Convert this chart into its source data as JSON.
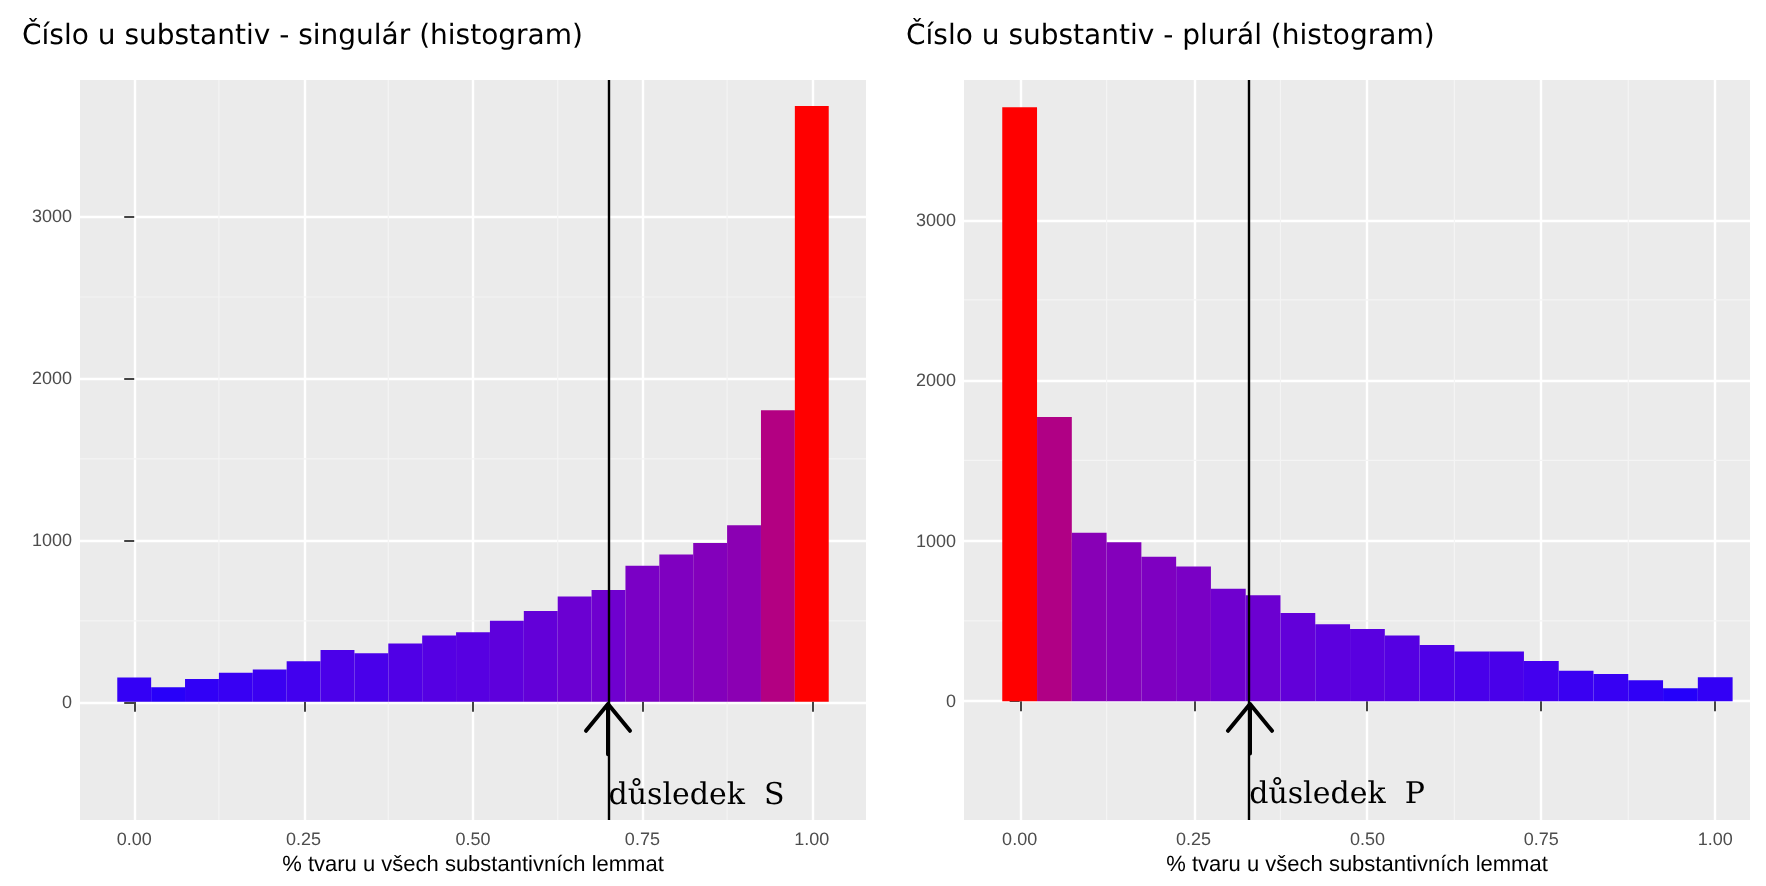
{
  "chart_data": [
    {
      "type": "histogram",
      "title": "Číslo u substantiv - singulár (histogram)",
      "xlabel": "% tvaru u všech substantivních lemmat",
      "bins": [
        -0.025,
        0.025,
        0.075,
        0.125,
        0.175,
        0.225,
        0.275,
        0.325,
        0.375,
        0.425,
        0.475,
        0.525,
        0.575,
        0.625,
        0.675,
        0.725,
        0.775,
        0.825,
        0.875,
        0.925,
        0.975,
        1.025
      ],
      "values": [
        150,
        90,
        140,
        180,
        200,
        250,
        320,
        300,
        360,
        410,
        430,
        500,
        560,
        650,
        690,
        840,
        910,
        980,
        1090,
        1800,
        3680
      ],
      "colors": [
        "#3400f5",
        "#2800f9",
        "#3100f6",
        "#3800f3",
        "#3b00f1",
        "#4200ee",
        "#4b00e9",
        "#4900ea",
        "#5000e6",
        "#5500e3",
        "#5700e1",
        "#5e00dc",
        "#6300d8",
        "#6b00d2",
        "#6f00cf",
        "#7a00c5",
        "#7f00c0",
        "#8300bb",
        "#8b00b3",
        "#b30082",
        "#ff0000"
      ],
      "xlim": [
        -0.08,
        1.08
      ],
      "xticks": [
        {
          "value": 0,
          "label": "0.00"
        },
        {
          "value": 0.25,
          "label": "0.25"
        },
        {
          "value": 0.5,
          "label": "0.50"
        },
        {
          "value": 0.75,
          "label": "0.75"
        },
        {
          "value": 1,
          "label": "1.00"
        }
      ],
      "ylim": [
        -730,
        3840
      ],
      "yticks": [
        0,
        1000,
        2000,
        3000
      ],
      "grid": true,
      "ref_lines": [
        {
          "axis": "x",
          "value": 0.7,
          "color": "#000000"
        }
      ],
      "annotations": [
        {
          "text": "důsledek  S",
          "x": 0.7,
          "y": -570
        }
      ]
    },
    {
      "type": "histogram",
      "title": "Číslo u substantiv - plurál (histogram)",
      "xlabel": "% tvaru u všech substantivních lemmat",
      "bins": [
        -0.025,
        0.025,
        0.075,
        0.125,
        0.175,
        0.225,
        0.275,
        0.325,
        0.375,
        0.425,
        0.475,
        0.525,
        0.575,
        0.625,
        0.675,
        0.725,
        0.775,
        0.825,
        0.875,
        0.925,
        0.975,
        1.025
      ],
      "values": [
        3700,
        1770,
        1050,
        990,
        900,
        840,
        700,
        660,
        550,
        480,
        450,
        410,
        350,
        310,
        310,
        250,
        190,
        170,
        130,
        80,
        150
      ],
      "colors": [
        "#ff0000",
        "#b00085",
        "#8800b6",
        "#8400bb",
        "#7e00c1",
        "#7a00c5",
        "#6f00cf",
        "#6c00d1",
        "#6200d9",
        "#5c00de",
        "#5900e0",
        "#5500e2",
        "#4e00e7",
        "#4900ea",
        "#4900ea",
        "#4300ee",
        "#3a00f2",
        "#3700f3",
        "#3000f6",
        "#2500fa",
        "#3300f5"
      ],
      "xlim": [
        -0.08,
        1.05
      ],
      "xticks": [
        {
          "value": 0,
          "label": "0.00"
        },
        {
          "value": 0.25,
          "label": "0.25"
        },
        {
          "value": 0.5,
          "label": "0.50"
        },
        {
          "value": 0.75,
          "label": "0.75"
        },
        {
          "value": 1,
          "label": "1.00"
        }
      ],
      "ylim": [
        -740,
        3870
      ],
      "yticks": [
        0,
        1000,
        2000,
        3000
      ],
      "grid": true,
      "ref_lines": [
        {
          "axis": "x",
          "value": 0.33,
          "color": "#000000"
        }
      ],
      "annotations": [
        {
          "text": "důsledek  P",
          "x": 0.33,
          "y": -570
        }
      ]
    }
  ]
}
